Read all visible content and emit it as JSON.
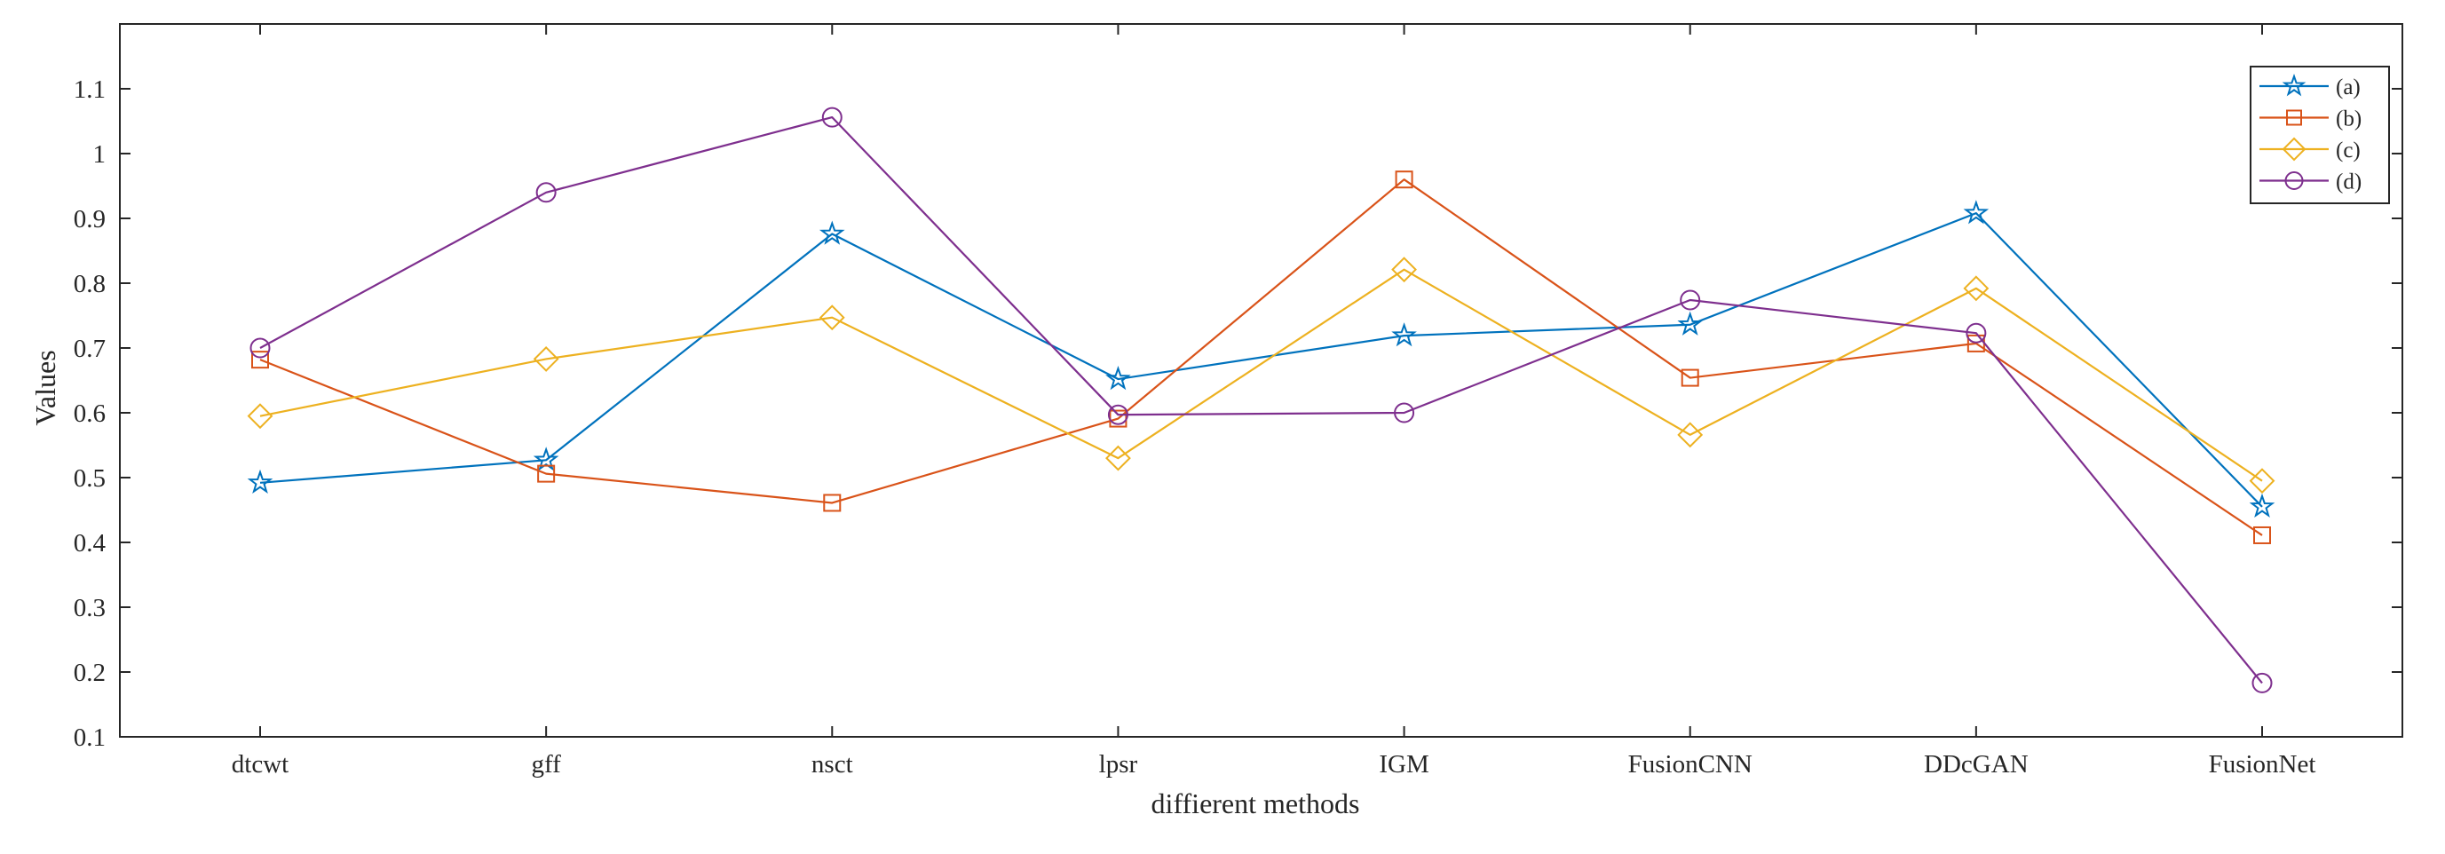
{
  "chart_data": {
    "type": "line",
    "title": "",
    "xlabel": "diffierent methods",
    "ylabel": "Values",
    "categories": [
      "dtcwt",
      "gff",
      "nsct",
      "lpsr",
      "IGM",
      "FusionCNN",
      "DDcGAN",
      "FusionNet"
    ],
    "ylim": [
      0.1,
      1.2
    ],
    "yticks": [
      0.1,
      0.2,
      0.3,
      0.4,
      0.5,
      0.6,
      0.7,
      0.8,
      0.9,
      1,
      1.1
    ],
    "ytick_labels": [
      "0.1",
      "0.2",
      "0.3",
      "0.4",
      "0.5",
      "0.6",
      "0.7",
      "0.8",
      "0.9",
      "1",
      "1.1"
    ],
    "grid": false,
    "legend_position": "top-right",
    "series": [
      {
        "name": "(a)",
        "marker": "star",
        "color": "#0072BD",
        "values": [
          0.492,
          0.527,
          0.876,
          0.652,
          0.719,
          0.736,
          0.908,
          0.455
        ]
      },
      {
        "name": "(b)",
        "marker": "square",
        "color": "#D95319",
        "values": [
          0.682,
          0.506,
          0.461,
          0.591,
          0.96,
          0.654,
          0.707,
          0.411
        ]
      },
      {
        "name": "(c)",
        "marker": "diamond",
        "color": "#EDB120",
        "values": [
          0.595,
          0.683,
          0.747,
          0.53,
          0.821,
          0.566,
          0.792,
          0.495
        ]
      },
      {
        "name": "(d)",
        "marker": "circle",
        "color": "#7E2F8E",
        "values": [
          0.7,
          0.94,
          1.056,
          0.597,
          0.6,
          0.774,
          0.723,
          0.183
        ]
      }
    ]
  }
}
